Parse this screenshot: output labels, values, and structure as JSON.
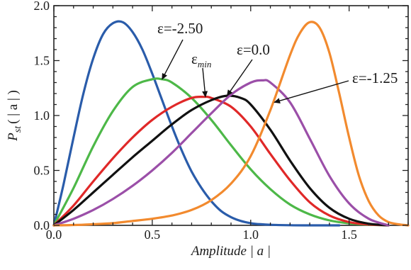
{
  "chart_data": {
    "type": "line",
    "title": "",
    "xlabel": "Amplitude | a |",
    "ylabel_main": "P",
    "ylabel_sub": "st",
    "ylabel_rest": "( | a | )",
    "xlim": [
      0,
      1.8
    ],
    "ylim": [
      0,
      2.0
    ],
    "xticks": [
      0.0,
      0.5,
      1.0,
      1.5
    ],
    "xtick_labels": [
      "0.0",
      "0.5",
      "1.0",
      "1.5"
    ],
    "yticks": [
      0.0,
      0.5,
      1.0,
      1.5,
      2.0
    ],
    "ytick_labels": [
      "0.0",
      "0.5",
      "1.0",
      "1.5",
      "2.0"
    ],
    "grid": false,
    "series": [
      {
        "color": "#2a5caa",
        "x": [
          0,
          0.05,
          0.1,
          0.15,
          0.2,
          0.25,
          0.3,
          0.35,
          0.4,
          0.45,
          0.5,
          0.55,
          0.6,
          0.65,
          0.7,
          0.75,
          0.8,
          0.85,
          0.9,
          0.95,
          1.0,
          1.05,
          1.1,
          1.2,
          1.3,
          1.45
        ],
        "y": [
          0,
          0.38,
          0.8,
          1.2,
          1.52,
          1.74,
          1.84,
          1.85,
          1.76,
          1.6,
          1.38,
          1.14,
          0.9,
          0.68,
          0.49,
          0.34,
          0.22,
          0.13,
          0.075,
          0.04,
          0.02,
          0.01,
          0.005,
          0.001,
          0.0,
          0.0
        ]
      },
      {
        "color": "#4db848",
        "x": [
          0,
          0.1,
          0.2,
          0.3,
          0.4,
          0.5,
          0.55,
          0.6,
          0.7,
          0.8,
          0.9,
          1.0,
          1.1,
          1.2,
          1.3,
          1.4,
          1.5,
          1.6,
          1.7
        ],
        "y": [
          0,
          0.34,
          0.72,
          1.04,
          1.26,
          1.33,
          1.33,
          1.3,
          1.16,
          0.96,
          0.73,
          0.51,
          0.33,
          0.19,
          0.1,
          0.045,
          0.018,
          0.006,
          0.0
        ]
      },
      {
        "color": "#e02828",
        "x": [
          0,
          0.1,
          0.2,
          0.3,
          0.4,
          0.5,
          0.6,
          0.7,
          0.76,
          0.8,
          0.9,
          1.0,
          1.1,
          1.2,
          1.3,
          1.4,
          1.5,
          1.6,
          1.7
        ],
        "y": [
          0,
          0.18,
          0.4,
          0.61,
          0.8,
          0.96,
          1.08,
          1.16,
          1.17,
          1.16,
          1.08,
          0.9,
          0.65,
          0.41,
          0.21,
          0.09,
          0.03,
          0.008,
          0.0
        ]
      },
      {
        "color": "#111111",
        "x": [
          0,
          0.1,
          0.2,
          0.3,
          0.4,
          0.5,
          0.6,
          0.7,
          0.8,
          0.88,
          0.95,
          1.0,
          1.1,
          1.2,
          1.3,
          1.4,
          1.5,
          1.6,
          1.7
        ],
        "y": [
          0,
          0.14,
          0.3,
          0.46,
          0.62,
          0.77,
          0.92,
          1.05,
          1.14,
          1.18,
          1.16,
          1.1,
          0.87,
          0.59,
          0.34,
          0.16,
          0.06,
          0.015,
          0.0
        ]
      },
      {
        "color": "#9b4fa8",
        "x": [
          0,
          0.1,
          0.2,
          0.3,
          0.4,
          0.5,
          0.6,
          0.7,
          0.8,
          0.9,
          1.0,
          1.06,
          1.1,
          1.2,
          1.3,
          1.4,
          1.5,
          1.6,
          1.7
        ],
        "y": [
          0,
          0.06,
          0.14,
          0.24,
          0.36,
          0.5,
          0.66,
          0.84,
          1.02,
          1.19,
          1.3,
          1.32,
          1.3,
          1.12,
          0.79,
          0.45,
          0.2,
          0.06,
          0.0
        ]
      },
      {
        "color": "#f28a2e",
        "x": [
          0,
          0.1,
          0.2,
          0.3,
          0.4,
          0.5,
          0.6,
          0.7,
          0.8,
          0.9,
          1.0,
          1.1,
          1.2,
          1.25,
          1.3,
          1.35,
          1.4,
          1.45,
          1.5,
          1.55,
          1.6,
          1.65,
          1.7,
          1.75,
          1.8
        ],
        "y": [
          0,
          0.003,
          0.01,
          0.02,
          0.04,
          0.06,
          0.09,
          0.14,
          0.23,
          0.38,
          0.63,
          1.05,
          1.55,
          1.75,
          1.85,
          1.8,
          1.57,
          1.2,
          0.8,
          0.45,
          0.22,
          0.09,
          0.03,
          0.01,
          0.0
        ]
      }
    ],
    "annotations": [
      {
        "text": "ε=-2.50",
        "series": 1,
        "point": [
          0.55,
          1.33
        ]
      },
      {
        "text": "ε",
        "sub": "min",
        "series": 2,
        "point": [
          0.77,
          1.17
        ]
      },
      {
        "text": "ε=0.0",
        "series": 3,
        "point": [
          0.88,
          1.18
        ]
      },
      {
        "text": "ε=-1.25",
        "series": 5,
        "point": [
          1.12,
          1.12
        ]
      }
    ]
  }
}
